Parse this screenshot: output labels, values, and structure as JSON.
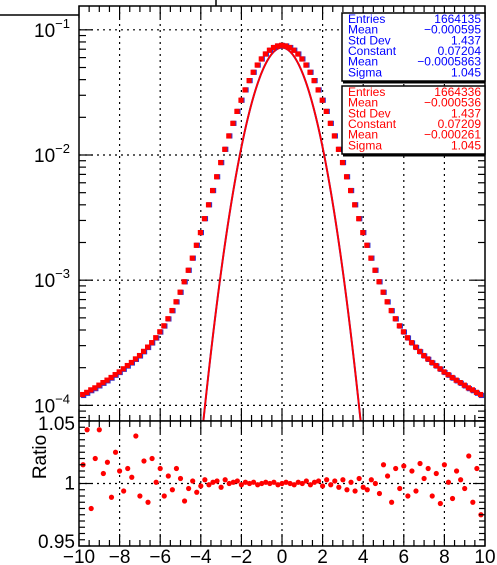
{
  "chart_data": [
    {
      "type": "scatter",
      "panel": "main",
      "y_scale": "log",
      "xlim": [
        -10,
        10
      ],
      "ylim": [
        7.5e-05,
        0.155
      ],
      "grid": true,
      "y_ticks": [
        {
          "base": "10",
          "exp": "−1",
          "value": 0.1
        },
        {
          "base": "10",
          "exp": "−2",
          "value": 0.01
        },
        {
          "base": "10",
          "exp": "−3",
          "value": 0.001
        },
        {
          "base": "10",
          "exp": "−4",
          "value": 0.0001
        }
      ],
      "series": [
        {
          "color": "#3333cc",
          "marker": "square",
          "x": [
            -9.8,
            -9.6,
            -9.4,
            -9.2,
            -9,
            -8.8,
            -8.6,
            -8.4,
            -8.2,
            -8,
            -7.8,
            -7.6,
            -7.4,
            -7.2,
            -7,
            -6.8,
            -6.6,
            -6.4,
            -6.2,
            -6,
            -5.8,
            -5.6,
            -5.4,
            -5.2,
            -5,
            -4.8,
            -4.6,
            -4.4,
            -4.2,
            -4,
            -3.8,
            -3.6,
            -3.4,
            -3.2,
            -3,
            -2.8,
            -2.6,
            -2.4,
            -2.2,
            -2,
            -1.8,
            -1.6,
            -1.4,
            -1.2,
            -1,
            -0.8,
            -0.6,
            -0.4,
            -0.2,
            0,
            0.2,
            0.4,
            0.6,
            0.8,
            1,
            1.2,
            1.4,
            1.6,
            1.8,
            2,
            2.2,
            2.4,
            2.6,
            2.8,
            3,
            3.2,
            3.4,
            3.6,
            3.8,
            4,
            4.2,
            4.4,
            4.6,
            4.8,
            5,
            5.2,
            5.4,
            5.6,
            5.8,
            6,
            6.2,
            6.4,
            6.6,
            6.8,
            7,
            7.2,
            7.4,
            7.6,
            7.8,
            8,
            8.2,
            8.4,
            8.6,
            8.8,
            9,
            9.2,
            9.4,
            9.6,
            9.8
          ],
          "y": [
            0.00012,
            0.000125,
            0.000131,
            0.000136,
            0.000143,
            0.00015,
            0.000157,
            0.000165,
            0.000174,
            0.000183,
            0.000194,
            0.000206,
            0.000218,
            0.000233,
            0.000248,
            0.000268,
            0.00029,
            0.000315,
            0.000345,
            0.000385,
            0.00043,
            0.00049,
            0.00057,
            0.00067,
            0.0008,
            0.00097,
            0.0012,
            0.0015,
            0.0019,
            0.0024,
            0.0031,
            0.004,
            0.0052,
            0.0067,
            0.0087,
            0.0111,
            0.0142,
            0.0179,
            0.0223,
            0.0274,
            0.0331,
            0.0393,
            0.0458,
            0.0523,
            0.0585,
            0.0641,
            0.0687,
            0.0722,
            0.0743,
            0.075,
            0.0743,
            0.0722,
            0.0687,
            0.0641,
            0.0585,
            0.0523,
            0.0458,
            0.0393,
            0.0331,
            0.0274,
            0.0223,
            0.0179,
            0.0142,
            0.0111,
            0.0087,
            0.0067,
            0.0052,
            0.004,
            0.0031,
            0.0024,
            0.0019,
            0.0015,
            0.0012,
            0.00097,
            0.0008,
            0.00067,
            0.00057,
            0.00049,
            0.00043,
            0.000385,
            0.000345,
            0.000315,
            0.00029,
            0.000268,
            0.000248,
            0.000233,
            0.000218,
            0.000206,
            0.000194,
            0.000183,
            0.000174,
            0.000165,
            0.000157,
            0.00015,
            0.000143,
            0.000136,
            0.000131,
            0.000125,
            0.00012
          ]
        },
        {
          "color": "#ff0000",
          "marker": "square",
          "x": [
            -9.8,
            -9.6,
            -9.4,
            -9.2,
            -9,
            -8.8,
            -8.6,
            -8.4,
            -8.2,
            -8,
            -7.8,
            -7.6,
            -7.4,
            -7.2,
            -7,
            -6.8,
            -6.6,
            -6.4,
            -6.2,
            -6,
            -5.8,
            -5.6,
            -5.4,
            -5.2,
            -5,
            -4.8,
            -4.6,
            -4.4,
            -4.2,
            -4,
            -3.8,
            -3.6,
            -3.4,
            -3.2,
            -3,
            -2.8,
            -2.6,
            -2.4,
            -2.2,
            -2,
            -1.8,
            -1.6,
            -1.4,
            -1.2,
            -1,
            -0.8,
            -0.6,
            -0.4,
            -0.2,
            0,
            0.2,
            0.4,
            0.6,
            0.8,
            1,
            1.2,
            1.4,
            1.6,
            1.8,
            2,
            2.2,
            2.4,
            2.6,
            2.8,
            3,
            3.2,
            3.4,
            3.6,
            3.8,
            4,
            4.2,
            4.4,
            4.6,
            4.8,
            5,
            5.2,
            5.4,
            5.6,
            5.8,
            6,
            6.2,
            6.4,
            6.6,
            6.8,
            7,
            7.2,
            7.4,
            7.6,
            7.8,
            8,
            8.2,
            8.4,
            8.6,
            8.8,
            9,
            9.2,
            9.4,
            9.6,
            9.8
          ],
          "y": [
            0.000122,
            0.000127,
            0.000133,
            0.000138,
            0.000145,
            0.000152,
            0.000159,
            0.000167,
            0.000176,
            0.000185,
            0.000196,
            0.000208,
            0.00022,
            0.000235,
            0.00025,
            0.00027,
            0.000292,
            0.000317,
            0.000347,
            0.000387,
            0.000432,
            0.000492,
            0.000572,
            0.000672,
            0.000802,
            0.000972,
            0.0012,
            0.0015,
            0.0019,
            0.0024,
            0.0031,
            0.004,
            0.0052,
            0.0067,
            0.0087,
            0.0111,
            0.0142,
            0.0179,
            0.0223,
            0.0274,
            0.0331,
            0.0393,
            0.0458,
            0.0523,
            0.0585,
            0.0641,
            0.0687,
            0.0722,
            0.0743,
            0.0752,
            0.0743,
            0.0722,
            0.0687,
            0.0641,
            0.0585,
            0.0523,
            0.0458,
            0.0393,
            0.0331,
            0.0274,
            0.0223,
            0.0179,
            0.0142,
            0.0111,
            0.0087,
            0.0067,
            0.0052,
            0.004,
            0.0031,
            0.0024,
            0.0019,
            0.0015,
            0.0012,
            0.000972,
            0.000802,
            0.000672,
            0.000572,
            0.000492,
            0.000432,
            0.000387,
            0.000347,
            0.000317,
            0.000292,
            0.00027,
            0.00025,
            0.000235,
            0.00022,
            0.000208,
            0.000196,
            0.000185,
            0.000176,
            0.000167,
            0.000159,
            0.000152,
            0.000145,
            0.000138,
            0.000133,
            0.000127,
            0.000122
          ]
        }
      ],
      "fits": [
        {
          "type": "gaussian",
          "color": "#3333cc",
          "constant": 0.07204,
          "mean": -0.0005863,
          "sigma": 1.045
        },
        {
          "type": "gaussian",
          "color": "#ff0000",
          "constant": 0.07209,
          "mean": -0.000261,
          "sigma": 1.045
        }
      ],
      "stat_boxes": [
        {
          "color": "#0000ff",
          "rows": [
            {
              "label": "Entries",
              "value": "1664135"
            },
            {
              "label": "Mean",
              "value": "−0.000595"
            },
            {
              "label": "Std Dev",
              "value": "1.437"
            },
            {
              "label": "Constant",
              "value": "0.07204"
            },
            {
              "label": "Mean",
              "value": "−0.0005863"
            },
            {
              "label": "Sigma",
              "value": "1.045"
            }
          ]
        },
        {
          "color": "#ff0000",
          "rows": [
            {
              "label": "Entries",
              "value": "1664336"
            },
            {
              "label": "Mean",
              "value": "−0.000536"
            },
            {
              "label": "Std Dev",
              "value": "1.437"
            },
            {
              "label": "Constant",
              "value": "0.07209"
            },
            {
              "label": "Mean",
              "value": "−0.000261"
            },
            {
              "label": "Sigma",
              "value": "1.045"
            }
          ]
        }
      ]
    },
    {
      "type": "scatter",
      "panel": "ratio",
      "ylabel": "Ratio",
      "xlim": [
        -10,
        10
      ],
      "ylim": [
        0.95,
        1.05
      ],
      "grid": true,
      "x_ticks": [
        "−10",
        "−8",
        "−6",
        "−4",
        "−2",
        "0",
        "2",
        "4",
        "6",
        "8",
        "10"
      ],
      "y_ticks": [
        "0.95",
        "1",
        "1.05"
      ],
      "series": [
        {
          "color": "#ff0000",
          "marker": "circle",
          "x": [
            -9.8,
            -9.6,
            -9.4,
            -9.2,
            -9,
            -8.8,
            -8.6,
            -8.4,
            -8.2,
            -8,
            -7.8,
            -7.6,
            -7.4,
            -7.2,
            -7,
            -6.8,
            -6.6,
            -6.4,
            -6.2,
            -6,
            -5.8,
            -5.6,
            -5.4,
            -5.2,
            -5,
            -4.8,
            -4.6,
            -4.4,
            -4.2,
            -4,
            -3.8,
            -3.6,
            -3.4,
            -3.2,
            -3,
            -2.8,
            -2.6,
            -2.4,
            -2.2,
            -2,
            -1.8,
            -1.6,
            -1.4,
            -1.2,
            -1,
            -0.8,
            -0.6,
            -0.4,
            -0.2,
            0,
            0.2,
            0.4,
            0.6,
            0.8,
            1,
            1.2,
            1.4,
            1.6,
            1.8,
            2,
            2.2,
            2.4,
            2.6,
            2.8,
            3,
            3.2,
            3.4,
            3.6,
            3.8,
            4,
            4.2,
            4.4,
            4.6,
            4.8,
            5,
            5.2,
            5.4,
            5.6,
            5.8,
            6,
            6.2,
            6.4,
            6.6,
            6.8,
            7,
            7.2,
            7.4,
            7.6,
            7.8,
            8,
            8.2,
            8.4,
            8.6,
            8.8,
            9,
            9.2,
            9.4,
            9.6,
            9.8
          ],
          "y": [
            1.015,
            1.043,
            0.98,
            1.02,
            1.043,
            1.008,
            1.017,
            0.989,
            1.025,
            1.01,
            0.994,
            1.012,
            1.005,
            1.038,
            0.99,
            1.018,
            0.985,
            1.02,
            1.001,
            1.012,
            0.99,
            1.006,
            0.995,
            1.012,
            1.004,
            0.986,
            0.996,
            1.002,
            0.993,
            0.998,
            1.003,
            0.999,
            1.001,
            1.002,
            0.997,
            1.003,
            1.0,
            1.001,
            1.002,
            0.999,
            1.001,
            1.0,
            1.001,
            0.999,
            1.0,
            1.001,
            1.0,
            1.001,
            0.999,
            1.0,
            1.001,
            1.0,
            0.999,
            1.001,
            1.0,
            1.002,
            0.999,
            1.001,
            1.002,
            0.998,
            1.003,
            0.999,
            1.002,
            0.997,
            1.003,
            0.995,
            1.001,
            0.994,
            1.004,
            0.997,
            0.995,
            1.003,
            1.0,
            0.992,
            1.015,
            1.006,
            0.985,
            1.012,
            0.996,
            1.014,
            0.99,
            1.01,
            0.994,
            1.016,
            1.004,
            1.012,
            0.99,
            1.008,
            0.984,
            1.015,
            1.001,
            0.988,
            1.01,
            1.003,
            0.996,
            1.022,
            0.985,
            1.012,
            0.975
          ]
        }
      ]
    }
  ]
}
